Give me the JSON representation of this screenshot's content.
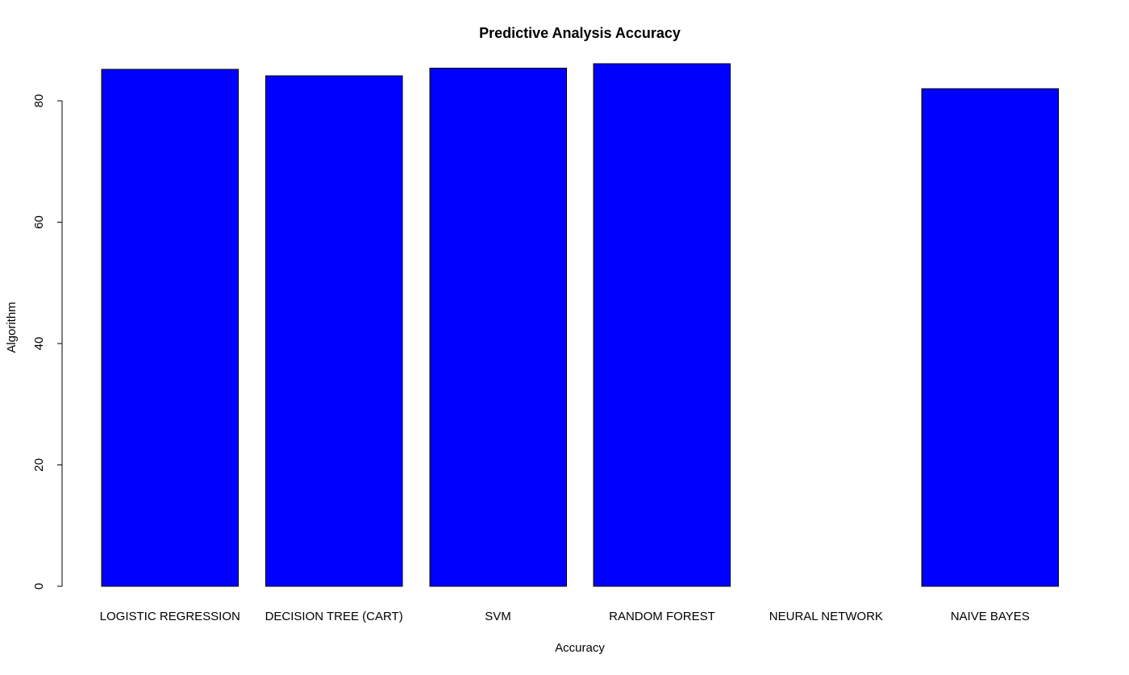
{
  "chart_data": {
    "type": "bar",
    "title": "Predictive Analysis Accuracy",
    "xlabel": "Accuracy",
    "ylabel": "Algorithm",
    "categories": [
      "LOGISTIC REGRESSION",
      "DECISION TREE (CART)",
      "SVM",
      "RANDOM FOREST",
      "NEURAL NETWORK",
      "NAIVE BAYES"
    ],
    "values": [
      85.2,
      84.1,
      85.4,
      86.1,
      0,
      82.0
    ],
    "ylim": [
      0,
      86.1
    ],
    "yticks": [
      0,
      20,
      40,
      60,
      80
    ],
    "bar_color": "#0000ff",
    "bar_border_color": "#000000",
    "grid": false,
    "legend": false
  }
}
